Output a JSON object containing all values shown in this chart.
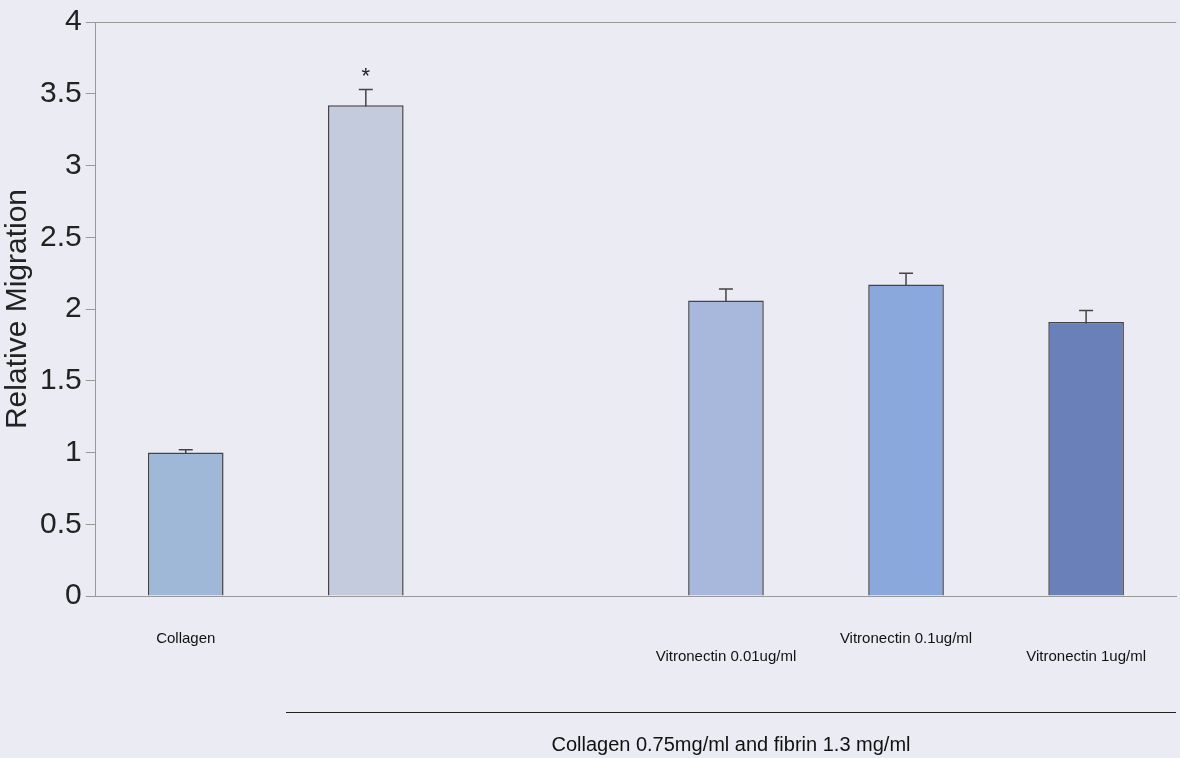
{
  "chart_data": {
    "type": "bar",
    "ylabel": "Relative Migration",
    "categories": [
      "Collagen",
      null,
      null,
      "Vitronectin 0.01ug/ml",
      "Vitronectin 0.1ug/ml",
      "Vitronectin 1ug/ml"
    ],
    "values": [
      1.0,
      3.42,
      null,
      2.06,
      2.17,
      1.91
    ],
    "errors": [
      0.02,
      0.11,
      null,
      0.08,
      0.08,
      0.08
    ],
    "colors": [
      "#9fb8d8",
      "#c4cbdc",
      "#c4cbdc",
      "#a8b8dc",
      "#8aa8dc",
      "#6a80b8"
    ],
    "ylim": [
      0,
      4
    ],
    "yticks": [
      0,
      0.5,
      1,
      1.5,
      2,
      2.5,
      3,
      3.5,
      4
    ],
    "grid": false,
    "legend": false,
    "annotations": [
      {
        "text": "*",
        "y": 3.53
      },
      "Collagen 0.75mg/ml and fibrin 1.3 mg/ml"
    ]
  }
}
